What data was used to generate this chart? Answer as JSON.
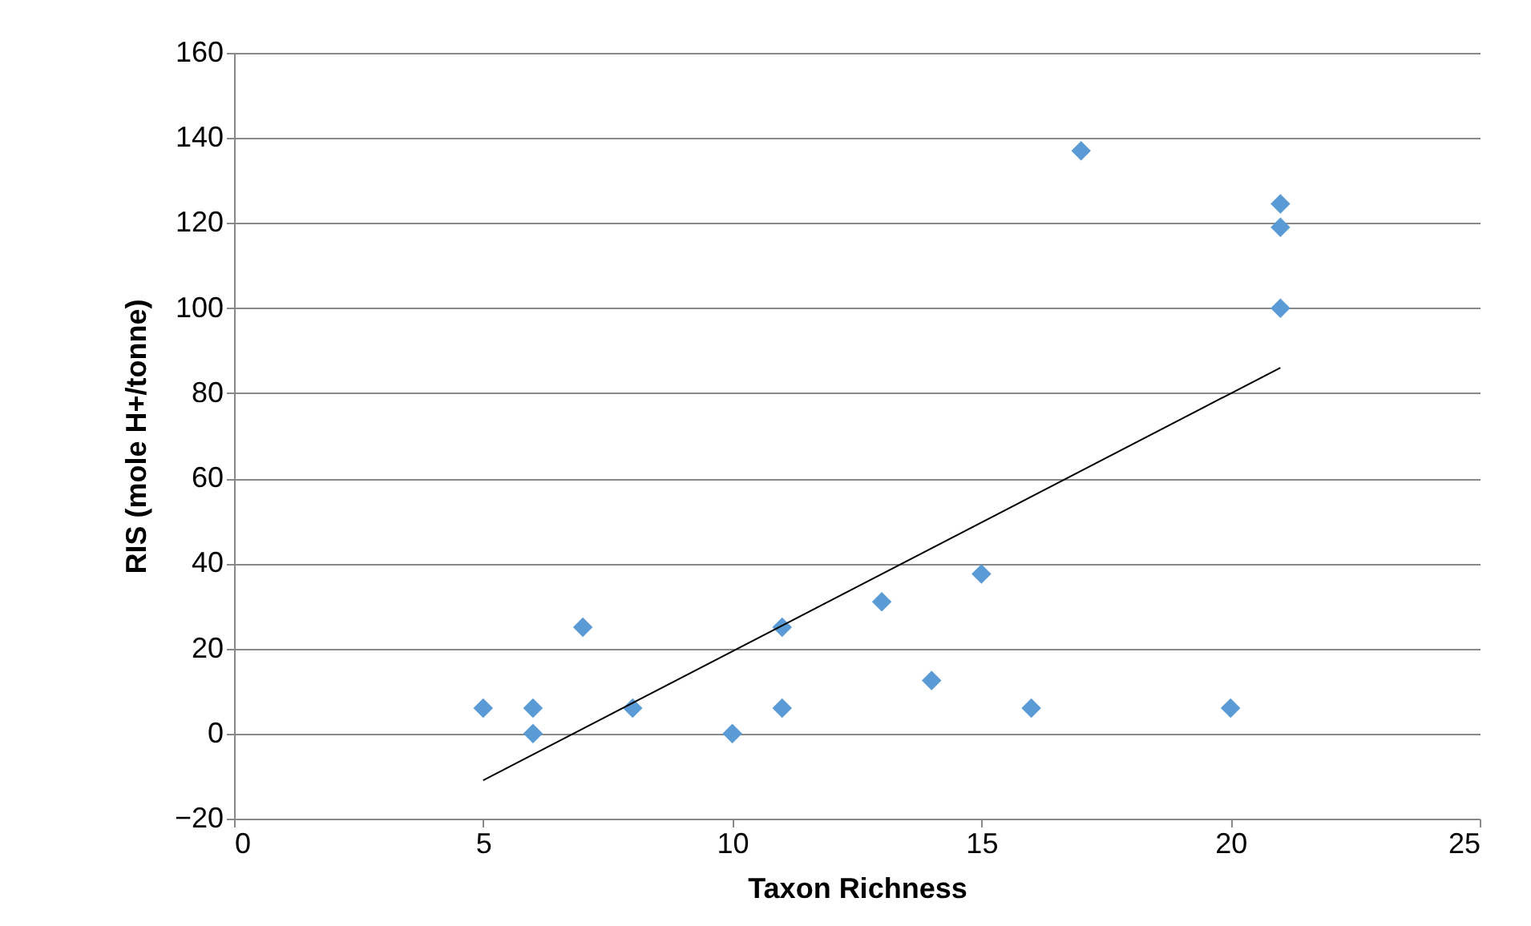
{
  "chart_data": {
    "type": "scatter",
    "xlabel": "Taxon Richness",
    "ylabel": "RIS (mole H+/tonne)",
    "xlim": [
      0,
      25
    ],
    "xticks": [
      0,
      5,
      10,
      15,
      20,
      25
    ],
    "ylim": [
      -20,
      160
    ],
    "yticks": [
      -20,
      0,
      20,
      40,
      60,
      80,
      100,
      120,
      140,
      160
    ],
    "grid": "y",
    "series": [
      {
        "marker": "diamond",
        "color": "#5b9bd5",
        "x": [
          5,
          6,
          6,
          7,
          8,
          10,
          11,
          11,
          13,
          14,
          15,
          16,
          17,
          20,
          21,
          21,
          21
        ],
        "values": [
          6,
          6,
          0,
          25,
          6,
          0,
          25,
          6,
          31,
          12.5,
          37.5,
          6,
          137,
          6,
          124.5,
          119,
          100
        ]
      },
      {
        "type": "line",
        "marker": "none",
        "color": "#000000",
        "x": [
          5,
          21
        ],
        "values": [
          -11,
          86
        ]
      }
    ]
  }
}
